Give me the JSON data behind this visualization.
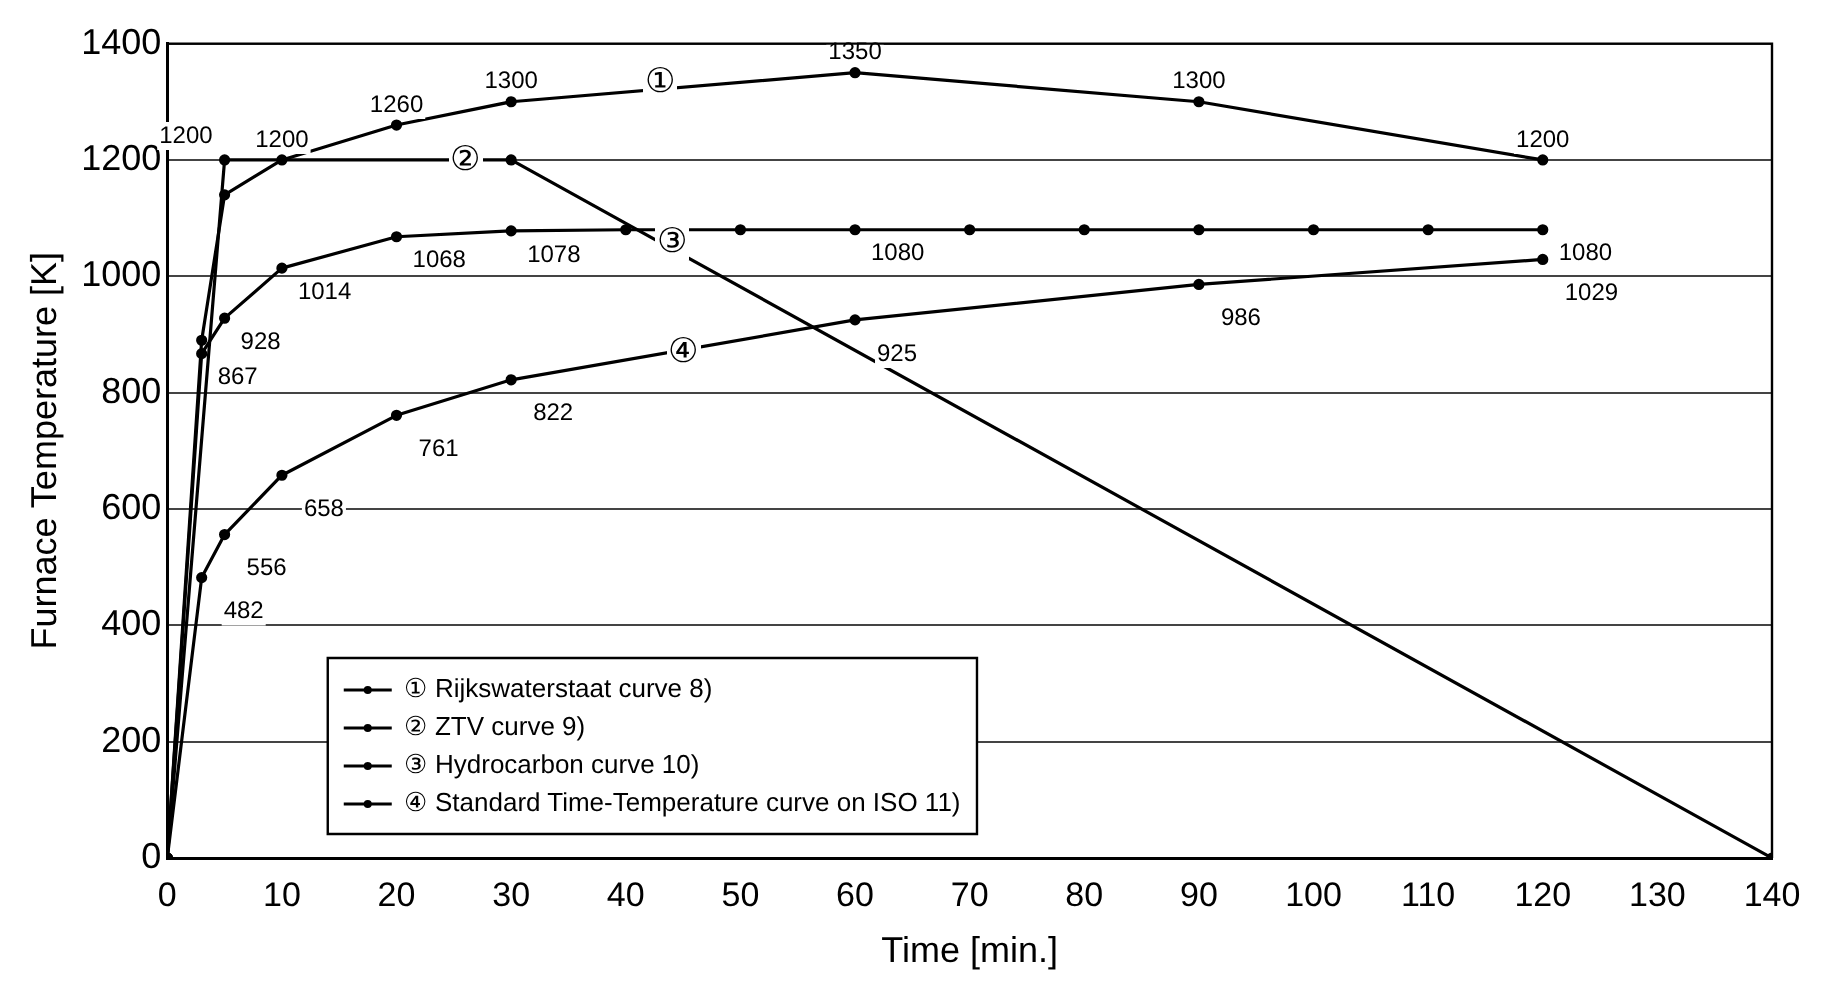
{
  "chart_data": {
    "type": "line",
    "xlabel": "Time [min.]",
    "ylabel": "Furnace Temperature [K]",
    "xlim": [
      0,
      140
    ],
    "xticks": [
      0,
      10,
      20,
      30,
      40,
      50,
      60,
      70,
      80,
      90,
      100,
      110,
      120,
      130,
      140
    ],
    "ylim": [
      0,
      1400
    ],
    "yticks": [
      0,
      200,
      400,
      600,
      800,
      1000,
      1200,
      1400
    ],
    "grid": "y",
    "legend": "bottom",
    "marker": "circle",
    "series": [
      {
        "name": "① Rijkswaterstaat curve 8)",
        "color": "#000000",
        "x": [
          0,
          3,
          5,
          10,
          20,
          30,
          60,
          90,
          120
        ],
        "values": [
          0,
          890,
          1140,
          1200,
          1260,
          1300,
          1350,
          1300,
          1200
        ],
        "value_labels": [
          null,
          null,
          null,
          "1200",
          "1260",
          "1300",
          "1350",
          "1300",
          "1200"
        ]
      },
      {
        "name": "② ZTV curve 9)",
        "color": "#000000",
        "x": [
          0,
          5,
          30,
          140
        ],
        "values": [
          0,
          1200,
          1200,
          0
        ],
        "value_labels": [
          null,
          "1200",
          null,
          null
        ]
      },
      {
        "name": "③ Hydrocarbon curve 10)",
        "color": "#000000",
        "x": [
          0,
          3,
          5,
          10,
          20,
          30,
          40,
          50,
          60,
          70,
          80,
          90,
          100,
          110,
          120
        ],
        "values": [
          0,
          867,
          928,
          1014,
          1068,
          1078,
          1080,
          1080,
          1080,
          1080,
          1080,
          1080,
          1080,
          1080,
          1080
        ],
        "value_labels": [
          null,
          "867",
          "928",
          "1014",
          "1068",
          "1078",
          null,
          null,
          "1080",
          null,
          null,
          null,
          null,
          null,
          "1080"
        ]
      },
      {
        "name": "④ Standard Time-Temperature curve on ISO 11)",
        "color": "#000000",
        "x": [
          0,
          3,
          5,
          10,
          20,
          30,
          60,
          90,
          120
        ],
        "values": [
          0,
          482,
          556,
          658,
          761,
          822,
          925,
          986,
          1029
        ],
        "value_labels": [
          null,
          "482",
          "556",
          "658",
          "761",
          "822",
          "925",
          "986",
          "1029"
        ]
      }
    ],
    "annotations": [
      {
        "text": "①",
        "x": 43,
        "y": 1335
      },
      {
        "text": "②",
        "x": 26,
        "y": 1200
      },
      {
        "text": "③",
        "x": 44,
        "y": 1060
      },
      {
        "text": "④",
        "x": 45,
        "y": 870
      }
    ]
  }
}
